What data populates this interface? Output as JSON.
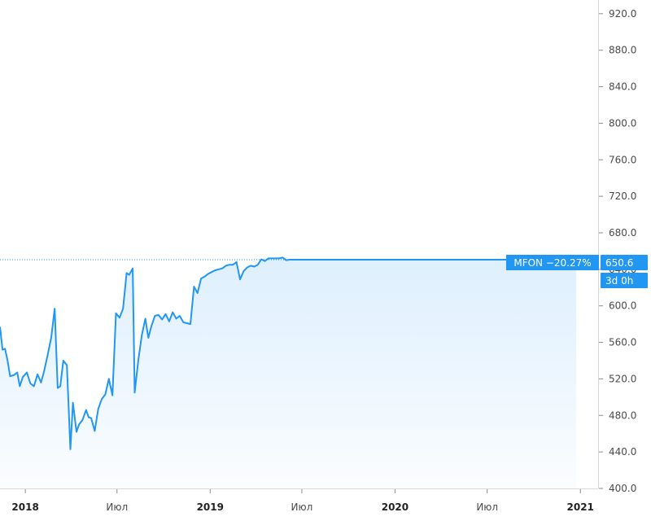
{
  "chart_data": {
    "type": "area",
    "ticker": "MFON",
    "change_label": "MFON −20.27%",
    "last_value_label": "650.6",
    "countdown_label": "3d 0h",
    "ylim": [
      400,
      935
    ],
    "xlim": [
      "2017-11-12",
      "2021-02-05"
    ],
    "y_ticks": [
      "400.0",
      "440.0",
      "480.0",
      "520.0",
      "560.0",
      "600.0",
      "640.0",
      "680.0",
      "720.0",
      "760.0",
      "800.0",
      "840.0",
      "880.0",
      "920.0"
    ],
    "x_ticks": [
      {
        "date": "2018-01-01",
        "label": "2018",
        "year": true
      },
      {
        "date": "2018-07-01",
        "label": "Июл",
        "year": false
      },
      {
        "date": "2019-01-01",
        "label": "2019",
        "year": true
      },
      {
        "date": "2019-07-01",
        "label": "Июл",
        "year": false
      },
      {
        "date": "2020-01-01",
        "label": "2020",
        "year": true
      },
      {
        "date": "2020-07-01",
        "label": "Июл",
        "year": false
      },
      {
        "date": "2021-01-01",
        "label": "2021",
        "year": true
      }
    ],
    "area_end": "2020-12-24",
    "last_value": 650.6,
    "series": [
      {
        "x": [
          "2017-11-12",
          "2017-11-17",
          "2017-11-22",
          "2017-11-27",
          "2017-12-02",
          "2017-12-09",
          "2017-12-16",
          "2017-12-21",
          "2017-12-27",
          "2018-01-04",
          "2018-01-11",
          "2018-01-18",
          "2018-01-25",
          "2018-02-01",
          "2018-02-07",
          "2018-02-14",
          "2018-02-21",
          "2018-02-28",
          "2018-03-06",
          "2018-03-11",
          "2018-03-17",
          "2018-03-24",
          "2018-03-31",
          "2018-04-05",
          "2018-04-12",
          "2018-04-17",
          "2018-04-24",
          "2018-05-01",
          "2018-05-06",
          "2018-05-11",
          "2018-05-18",
          "2018-05-25",
          "2018-06-01",
          "2018-06-08",
          "2018-06-15",
          "2018-06-22",
          "2018-06-29",
          "2018-07-06",
          "2018-07-13",
          "2018-07-20",
          "2018-07-25",
          "2018-08-01",
          "2018-08-05",
          "2018-08-12",
          "2018-08-19",
          "2018-08-26",
          "2018-09-01",
          "2018-09-07",
          "2018-09-14",
          "2018-09-21",
          "2018-09-28",
          "2018-10-05",
          "2018-10-12",
          "2018-10-19",
          "2018-10-26",
          "2018-11-02",
          "2018-11-09",
          "2018-11-16",
          "2018-11-23",
          "2018-11-30",
          "2018-12-07",
          "2018-12-14",
          "2018-12-21",
          "2018-12-28",
          "2019-01-04",
          "2019-01-11",
          "2019-01-18",
          "2019-01-25",
          "2019-02-01",
          "2019-02-08",
          "2019-02-15",
          "2019-02-22",
          "2019-03-01",
          "2019-03-08",
          "2019-03-15",
          "2019-03-22",
          "2019-03-29",
          "2019-04-05",
          "2019-04-12",
          "2019-04-19",
          "2019-04-26",
          "2019-05-03",
          "2019-05-10",
          "2019-05-17",
          "2019-05-24",
          "2019-05-31",
          "2019-06-07",
          "2019-06-14",
          "2019-06-21",
          "2019-06-28",
          "2019-07-05",
          "2019-07-12",
          "2020-12-24"
        ],
        "values": [
          577,
          552,
          553,
          540,
          523,
          524,
          527,
          512,
          522,
          527,
          515,
          512,
          525,
          516,
          528,
          546,
          565,
          597,
          510,
          512,
          540,
          535,
          443,
          494,
          462,
          470,
          475,
          486,
          478,
          477,
          463,
          487,
          498,
          503,
          520,
          502,
          592,
          587,
          597,
          636,
          634,
          641,
          505,
          540,
          568,
          586,
          565,
          578,
          589,
          590,
          585,
          591,
          583,
          593,
          586,
          589,
          582,
          581,
          580,
          621,
          614,
          630,
          632,
          635,
          637,
          639,
          640,
          641,
          644,
          645,
          645,
          648,
          629,
          638,
          642,
          644,
          643,
          645,
          651,
          649,
          652,
          652,
          652,
          652,
          653,
          650,
          650.6,
          650.6,
          650.6,
          650.6,
          650.6,
          650.6,
          650.6
        ]
      }
    ]
  }
}
